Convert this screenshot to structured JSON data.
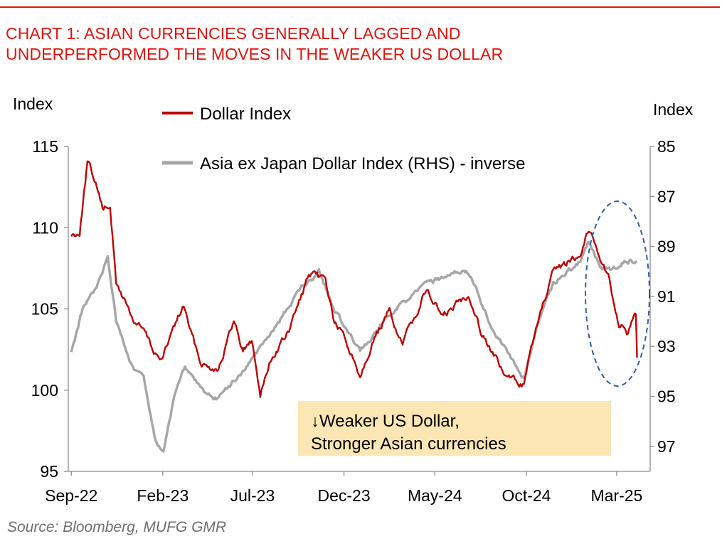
{
  "header": {
    "title_line1": "CHART 1: ASIAN CURRENCIES GENERALLY LAGGED AND",
    "title_line2": "UNDERPERFORMED THE MOVES IN THE WEAKER US DOLLAR"
  },
  "footer": {
    "source": "Source: Bloomberg, MUFG GMR"
  },
  "colors": {
    "accent": "#e3120b",
    "dollar_series": "#c00000",
    "asia_series": "#a6a6a6",
    "annotation_bg": "#fce6b3",
    "circle": "#2e5fa8"
  },
  "chart_data": {
    "type": "line",
    "title": "CHART 1: ASIAN CURRENCIES GENERALLY LAGGED AND UNDERPERFORMED THE MOVES IN THE WEAKER US DOLLAR",
    "left_axis": {
      "label": "Index",
      "range": [
        95,
        115
      ],
      "ticks": [
        "95",
        "100",
        "105",
        "110",
        "115"
      ]
    },
    "right_axis": {
      "label": "Index",
      "range": [
        85,
        98
      ],
      "inverted": true,
      "ticks": [
        "85",
        "87",
        "89",
        "91",
        "93",
        "95",
        "97"
      ]
    },
    "x_axis": {
      "range": [
        "2022-09",
        "2025-04"
      ],
      "ticks": [
        "Sep-22",
        "Feb-23",
        "Jul-23",
        "Dec-23",
        "May-24",
        "Oct-24",
        "Mar-25"
      ]
    },
    "legend": {
      "placement": "top-center",
      "entries": [
        "Dollar Index",
        "Asia ex Japan Dollar Index (RHS) - inverse"
      ]
    },
    "annotation": {
      "line1": "↓Weaker US Dollar,",
      "line2": "Stronger Asian currencies"
    },
    "grid": false,
    "series": [
      {
        "name": "Dollar Index",
        "axis": "left",
        "points": [
          [
            "2022-09-01",
            109.5
          ],
          [
            "2022-09-15",
            109.8
          ],
          [
            "2022-09-28",
            114.0
          ],
          [
            "2022-10-10",
            113.0
          ],
          [
            "2022-10-25",
            111.0
          ],
          [
            "2022-11-05",
            111.5
          ],
          [
            "2022-11-15",
            106.5
          ],
          [
            "2022-11-30",
            105.5
          ],
          [
            "2022-12-15",
            104.2
          ],
          [
            "2022-12-31",
            103.7
          ],
          [
            "2023-01-15",
            102.5
          ],
          [
            "2023-01-31",
            101.8
          ],
          [
            "2023-02-15",
            103.5
          ],
          [
            "2023-03-08",
            105.2
          ],
          [
            "2023-03-20",
            103.5
          ],
          [
            "2023-04-05",
            101.8
          ],
          [
            "2023-04-15",
            101.5
          ],
          [
            "2023-05-05",
            101.4
          ],
          [
            "2023-05-31",
            104.2
          ],
          [
            "2023-06-15",
            102.5
          ],
          [
            "2023-06-30",
            103.0
          ],
          [
            "2023-07-14",
            99.8
          ],
          [
            "2023-07-31",
            101.8
          ],
          [
            "2023-08-31",
            103.6
          ],
          [
            "2023-09-15",
            105.2
          ],
          [
            "2023-10-03",
            107.0
          ],
          [
            "2023-10-31",
            106.8
          ],
          [
            "2023-11-15",
            104.2
          ],
          [
            "2023-11-30",
            103.3
          ],
          [
            "2023-12-28",
            101.0
          ],
          [
            "2024-01-15",
            102.8
          ],
          [
            "2024-02-15",
            104.8
          ],
          [
            "2024-03-08",
            102.8
          ],
          [
            "2024-04-16",
            106.2
          ],
          [
            "2024-05-15",
            104.5
          ],
          [
            "2024-06-26",
            106.0
          ],
          [
            "2024-07-17",
            103.7
          ],
          [
            "2024-08-27",
            100.8
          ],
          [
            "2024-09-27",
            100.4
          ],
          [
            "2024-10-15",
            103.5
          ],
          [
            "2024-11-13",
            107.0
          ],
          [
            "2024-12-31",
            108.5
          ],
          [
            "2025-01-13",
            110.0
          ],
          [
            "2025-02-15",
            107.0
          ],
          [
            "2025-03-05",
            104.0
          ],
          [
            "2025-03-20",
            103.5
          ],
          [
            "2025-04-02",
            104.5
          ],
          [
            "2025-04-04",
            102.0
          ]
        ]
      },
      {
        "name": "Asia ex Japan Dollar Index (RHS) - inverse",
        "axis": "right",
        "points": [
          [
            "2022-09-01",
            93.2
          ],
          [
            "2022-09-20",
            91.5
          ],
          [
            "2022-10-15",
            90.5
          ],
          [
            "2022-11-01",
            89.5
          ],
          [
            "2022-11-15",
            92.0
          ],
          [
            "2022-11-30",
            93.0
          ],
          [
            "2022-12-15",
            94.0
          ],
          [
            "2022-12-31",
            94.2
          ],
          [
            "2023-01-20",
            96.8
          ],
          [
            "2023-02-02",
            97.2
          ],
          [
            "2023-02-20",
            95.0
          ],
          [
            "2023-03-10",
            93.8
          ],
          [
            "2023-04-15",
            95.0
          ],
          [
            "2023-05-05",
            95.1
          ],
          [
            "2023-06-15",
            94.0
          ],
          [
            "2023-07-14",
            93.0
          ],
          [
            "2023-08-15",
            92.0
          ],
          [
            "2023-09-15",
            90.8
          ],
          [
            "2023-10-20",
            90.0
          ],
          [
            "2023-11-15",
            91.5
          ],
          [
            "2023-12-28",
            93.2
          ],
          [
            "2024-01-31",
            92.2
          ],
          [
            "2024-02-29",
            91.5
          ],
          [
            "2024-04-16",
            90.5
          ],
          [
            "2024-06-15",
            90.0
          ],
          [
            "2024-06-28",
            90.1
          ],
          [
            "2024-07-31",
            92.0
          ],
          [
            "2024-09-27",
            94.3
          ],
          [
            "2024-10-15",
            92.5
          ],
          [
            "2024-11-15",
            90.5
          ],
          [
            "2024-12-31",
            89.6
          ],
          [
            "2025-01-13",
            88.8
          ],
          [
            "2025-02-01",
            89.8
          ],
          [
            "2025-02-20",
            90.0
          ],
          [
            "2025-03-10",
            89.6
          ],
          [
            "2025-04-04",
            89.6
          ]
        ]
      }
    ]
  }
}
